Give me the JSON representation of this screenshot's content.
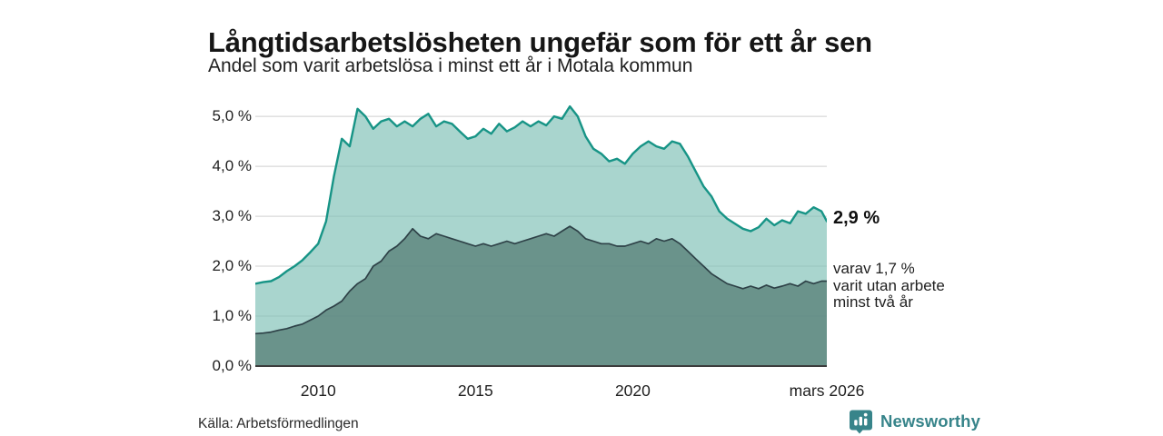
{
  "title": "Långtidsarbetslösheten ungefär som för ett år sen",
  "subtitle": "Andel som varit arbetslösa i minst ett år i Motala kommun",
  "source": "Källa: Arbetsförmedlingen",
  "branding": {
    "name": "Newsworthy",
    "icon": "newsworthy-bar-chart-bubble-icon",
    "color": "#37848a",
    "icon_color": "#37848a",
    "icon_glyph_color": "#ffffff"
  },
  "annotations": {
    "total": {
      "label": "2,9 %"
    },
    "subset": {
      "lines": [
        "varav 1,7 %",
        "varit utan arbete",
        "minst två år"
      ]
    }
  },
  "chart_data": {
    "type": "area",
    "title": "Långtidsarbetslösheten ungefär som för ett år sen",
    "subtitle": "Andel som varit arbetslösa i minst ett år i Motala kommun",
    "unit": "%",
    "grid": true,
    "gridline_color": "#d9d9d9",
    "axis_color": "#3c3c3c",
    "xlim": [
      2008.0,
      2026.17
    ],
    "ylim": [
      0,
      5.42
    ],
    "x_ticks": [
      {
        "x": 2010,
        "label": "2010"
      },
      {
        "x": 2015,
        "label": "2015"
      },
      {
        "x": 2020,
        "label": "2020"
      },
      {
        "x": 2026.17,
        "label": "mars 2026"
      }
    ],
    "y_ticks": [
      {
        "value": 0,
        "label": "0,0 %"
      },
      {
        "value": 1,
        "label": "1,0 %"
      },
      {
        "value": 2,
        "label": "2,0 %"
      },
      {
        "value": 3,
        "label": "3,0 %"
      },
      {
        "value": 4,
        "label": "4,0 %"
      },
      {
        "value": 5,
        "label": "5,0 %"
      }
    ],
    "x": [
      2008,
      2008.25,
      2008.5,
      2008.75,
      2009,
      2009.25,
      2009.5,
      2009.75,
      2010,
      2010.25,
      2010.5,
      2010.75,
      2011,
      2011.25,
      2011.5,
      2011.75,
      2012,
      2012.25,
      2012.5,
      2012.75,
      2013,
      2013.25,
      2013.5,
      2013.75,
      2014,
      2014.25,
      2014.5,
      2014.75,
      2015,
      2015.25,
      2015.5,
      2015.75,
      2016,
      2016.25,
      2016.5,
      2016.75,
      2017,
      2017.25,
      2017.5,
      2017.75,
      2018,
      2018.25,
      2018.5,
      2018.75,
      2019,
      2019.25,
      2019.5,
      2019.75,
      2020,
      2020.25,
      2020.5,
      2020.75,
      2021,
      2021.25,
      2021.5,
      2021.75,
      2022,
      2022.25,
      2022.5,
      2022.75,
      2023,
      2023.25,
      2023.5,
      2023.75,
      2024,
      2024.25,
      2024.5,
      2024.75,
      2025,
      2025.25,
      2025.5,
      2025.75,
      2026,
      2026.17
    ],
    "series": [
      {
        "name": "Andel arbetslösa minst ett år",
        "latest_value": 2.9,
        "latest_label": "2,9 %",
        "line_color": "#179486",
        "fill_color": "rgba(124,191,181,0.66)",
        "line_width": 2.4,
        "values": [
          1.65,
          1.68,
          1.7,
          1.78,
          1.9,
          2.0,
          2.12,
          2.28,
          2.45,
          2.9,
          3.8,
          4.55,
          4.4,
          5.15,
          5.0,
          4.75,
          4.9,
          4.95,
          4.8,
          4.9,
          4.8,
          4.95,
          5.05,
          4.8,
          4.9,
          4.85,
          4.7,
          4.55,
          4.6,
          4.75,
          4.65,
          4.85,
          4.7,
          4.78,
          4.9,
          4.8,
          4.9,
          4.82,
          5.0,
          4.95,
          5.2,
          5.0,
          4.6,
          4.35,
          4.25,
          4.1,
          4.15,
          4.05,
          4.25,
          4.4,
          4.5,
          4.4,
          4.35,
          4.5,
          4.45,
          4.2,
          3.9,
          3.6,
          3.4,
          3.1,
          2.95,
          2.85,
          2.75,
          2.7,
          2.78,
          2.95,
          2.82,
          2.92,
          2.86,
          3.1,
          3.05,
          3.18,
          3.1,
          2.9
        ]
      },
      {
        "name": "varav utan arbete minst två år",
        "latest_value": 1.7,
        "latest_label": "1,7 %",
        "line_color": "#2e4147",
        "fill_color": "rgba(88,128,120,0.78)",
        "line_width": 1.7,
        "values": [
          0.65,
          0.66,
          0.68,
          0.72,
          0.75,
          0.8,
          0.84,
          0.92,
          1.0,
          1.12,
          1.2,
          1.3,
          1.5,
          1.65,
          1.75,
          2.0,
          2.1,
          2.3,
          2.4,
          2.55,
          2.75,
          2.6,
          2.55,
          2.65,
          2.6,
          2.55,
          2.5,
          2.45,
          2.4,
          2.45,
          2.4,
          2.45,
          2.5,
          2.45,
          2.5,
          2.55,
          2.6,
          2.65,
          2.6,
          2.7,
          2.8,
          2.7,
          2.55,
          2.5,
          2.45,
          2.45,
          2.4,
          2.4,
          2.45,
          2.5,
          2.45,
          2.55,
          2.5,
          2.55,
          2.45,
          2.3,
          2.15,
          2.0,
          1.85,
          1.75,
          1.65,
          1.6,
          1.55,
          1.6,
          1.55,
          1.62,
          1.56,
          1.6,
          1.65,
          1.6,
          1.7,
          1.65,
          1.7,
          1.7
        ]
      }
    ]
  }
}
